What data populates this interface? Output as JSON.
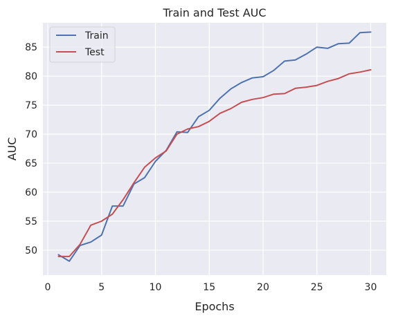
{
  "chart_data": {
    "type": "line",
    "title": "Train and Test AUC",
    "xlabel": "Epochs",
    "ylabel": "AUC",
    "xlim": [
      -0.45,
      31.45
    ],
    "ylim": [
      45.7,
      89.2
    ],
    "xticks": [
      0,
      5,
      10,
      15,
      20,
      25,
      30
    ],
    "yticks": [
      50,
      55,
      60,
      65,
      70,
      75,
      80,
      85
    ],
    "grid": true,
    "background": "#eaeaf2",
    "legend_position": "top-left",
    "x": [
      1,
      2,
      3,
      4,
      5,
      6,
      7,
      8,
      9,
      10,
      11,
      12,
      13,
      14,
      15,
      16,
      17,
      18,
      19,
      20,
      21,
      22,
      23,
      24,
      25,
      26,
      27,
      28,
      29,
      30
    ],
    "series": [
      {
        "name": "Train",
        "color": "#4c72b0",
        "values": [
          49.2,
          48.1,
          50.8,
          51.4,
          52.6,
          57.6,
          57.6,
          61.4,
          62.5,
          65.3,
          67.2,
          70.4,
          70.3,
          73.0,
          74.1,
          76.2,
          77.8,
          78.9,
          79.7,
          79.9,
          81.0,
          82.6,
          82.8,
          83.8,
          85.0,
          84.8,
          85.6,
          85.7,
          87.5,
          87.6
        ]
      },
      {
        "name": "Test",
        "color": "#c44e52",
        "values": [
          48.9,
          48.9,
          51.0,
          54.3,
          55.0,
          56.2,
          58.7,
          61.6,
          64.3,
          65.9,
          67.1,
          70.0,
          70.9,
          71.3,
          72.2,
          73.6,
          74.4,
          75.5,
          76.0,
          76.3,
          76.9,
          77.0,
          77.9,
          78.1,
          78.4,
          79.1,
          79.6,
          80.4,
          80.7,
          81.1
        ]
      }
    ]
  }
}
